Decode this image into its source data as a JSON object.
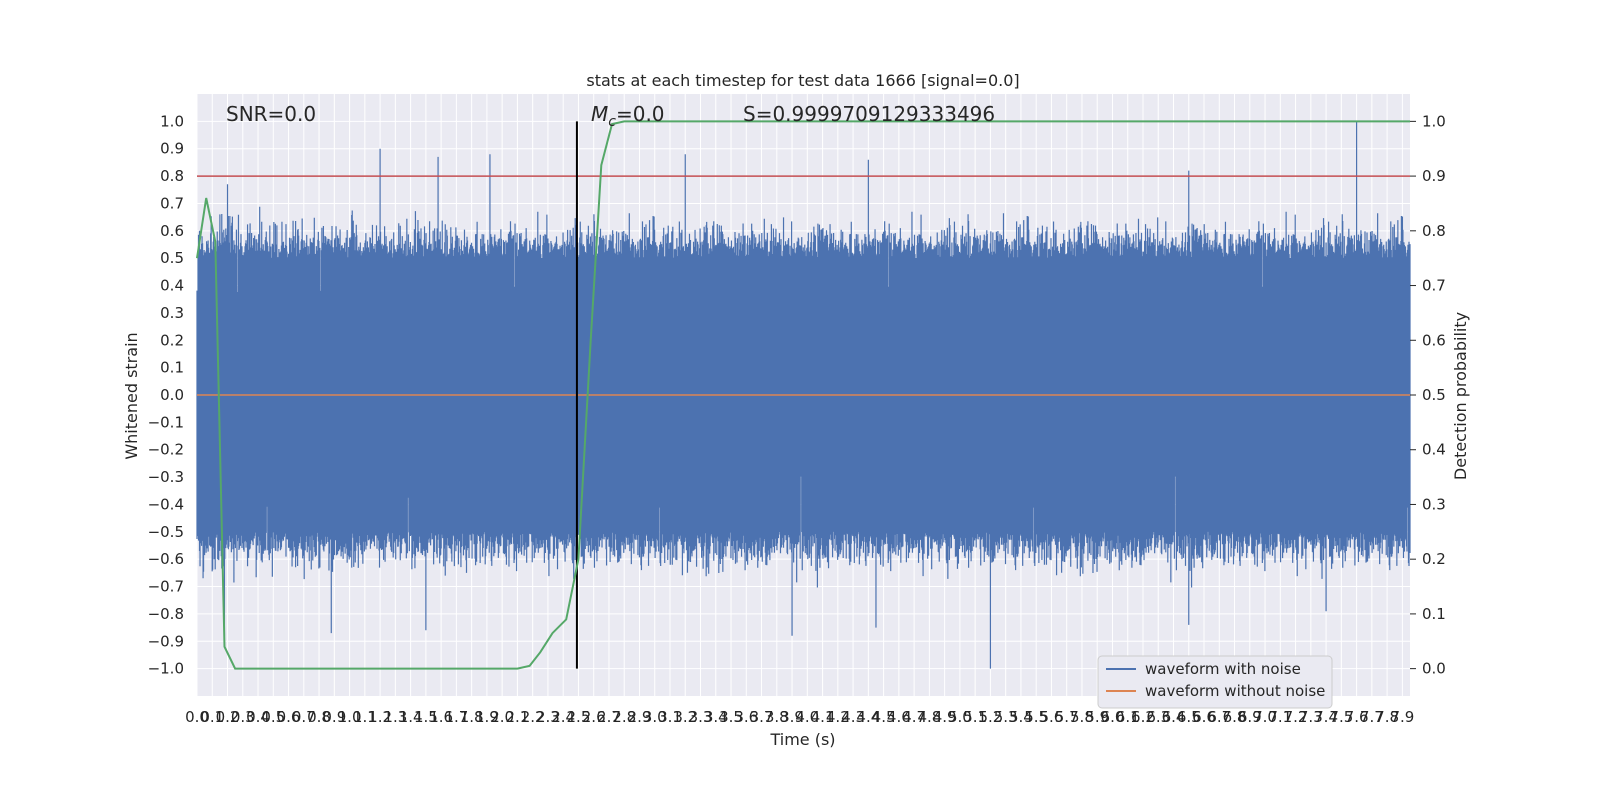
{
  "chart_data": {
    "type": "line",
    "title": "stats at each timestep for test data 1666 [signal=0.0]",
    "xlabel": "Time (s)",
    "ylabel": "Whitened strain",
    "ylabel_right": "Detection probability",
    "xlim": [
      0.0,
      7.95
    ],
    "ylim": [
      -1.1,
      1.1
    ],
    "ylim_right": [
      -0.05,
      1.05
    ],
    "xticks": [
      0.0,
      0.1,
      0.2,
      0.3,
      0.4,
      0.5,
      0.6,
      0.7,
      0.8,
      0.9,
      1.0,
      1.1,
      1.2,
      1.3,
      1.4,
      1.5,
      1.6,
      1.7,
      1.8,
      1.9,
      2.0,
      2.1,
      2.2,
      2.3,
      2.4,
      2.5,
      2.6,
      2.7,
      2.8,
      2.9,
      3.0,
      3.1,
      3.2,
      3.3,
      3.4,
      3.5,
      3.6,
      3.7,
      3.8,
      3.9,
      4.0,
      4.1,
      4.2,
      4.3,
      4.4,
      4.5,
      4.6,
      4.7,
      4.8,
      4.9,
      5.0,
      5.1,
      5.2,
      5.3,
      5.4,
      5.5,
      5.6,
      5.7,
      5.8,
      5.9,
      6.0,
      6.1,
      6.2,
      6.3,
      6.4,
      6.5,
      6.6,
      6.7,
      6.8,
      6.9,
      7.0,
      7.1,
      7.2,
      7.3,
      7.4,
      7.5,
      7.6,
      7.7,
      7.8,
      7.9
    ],
    "xtick_labels": [
      "0.0",
      "0.1",
      "0.2",
      "0.3",
      "0.4",
      "0.5",
      "0.6",
      "0.7",
      "0.8",
      "0.9",
      "1.0",
      "1.1",
      "1.2",
      "1.3",
      "1.4",
      "1.5",
      "1.6",
      "1.7",
      "1.8",
      "1.9",
      "2.0",
      "2.1",
      "2.2",
      "2.3",
      "2.4",
      "2.5",
      "2.6",
      "2.7",
      "2.8",
      "2.9",
      "3.0",
      "3.1",
      "3.2",
      "3.3",
      "3.4",
      "3.5",
      "3.6",
      "3.7",
      "3.8",
      "3.9",
      "4.0",
      "4.1",
      "4.2",
      "4.3",
      "4.4",
      "4.5",
      "4.6",
      "4.7",
      "4.8",
      "4.9",
      "5.0",
      "5.1",
      "5.2",
      "5.3",
      "5.4",
      "5.5",
      "5.6",
      "5.7",
      "5.8",
      "5.9",
      "6.0",
      "6.1",
      "6.2",
      "6.3",
      "6.4",
      "6.5",
      "6.6",
      "6.7",
      "6.8",
      "6.9",
      "7.0",
      "7.1",
      "7.2",
      "7.3",
      "7.4",
      "7.5",
      "7.6",
      "7.7",
      "7.8",
      "7.9"
    ],
    "yticks": [
      -1.0,
      -0.9,
      -0.8,
      -0.7,
      -0.6,
      -0.5,
      -0.4,
      -0.3,
      -0.2,
      -0.1,
      0.0,
      0.1,
      0.2,
      0.3,
      0.4,
      0.5,
      0.6,
      0.7,
      0.8,
      0.9,
      1.0
    ],
    "ytick_labels": [
      "−1.0",
      "−0.9",
      "−0.8",
      "−0.7",
      "−0.6",
      "−0.5",
      "−0.4",
      "−0.3",
      "−0.2",
      "−0.1",
      "0.0",
      "0.1",
      "0.2",
      "0.3",
      "0.4",
      "0.5",
      "0.6",
      "0.7",
      "0.8",
      "0.9",
      "1.0"
    ],
    "yticks_right": [
      0.0,
      0.1,
      0.2,
      0.3,
      0.4,
      0.5,
      0.6,
      0.7,
      0.8,
      0.9,
      1.0
    ],
    "ytick_labels_right": [
      "0.0",
      "0.1",
      "0.2",
      "0.3",
      "0.4",
      "0.5",
      "0.6",
      "0.7",
      "0.8",
      "0.9",
      "1.0"
    ],
    "grid": true,
    "legend_placement": "lower-right",
    "annotations": {
      "snr": "SNR=0.0",
      "mc_symbol": "M",
      "mc_subscript": "c",
      "mc_value": "=0.0",
      "s": "S=0.9999709129333496"
    },
    "series": [
      {
        "name": "waveform with noise",
        "color": "#4c72b0",
        "kind": "noise",
        "approx_envelope_upper": 0.5,
        "approx_envelope_lower": -0.5,
        "peak_points": [
          {
            "x": 0.05,
            "y": 0.52
          },
          {
            "x": 0.15,
            "y": 0.66
          },
          {
            "x": 0.2,
            "y": 0.77
          },
          {
            "x": 1.2,
            "y": 0.9
          },
          {
            "x": 1.58,
            "y": 0.87
          },
          {
            "x": 1.92,
            "y": 0.88
          },
          {
            "x": 3.2,
            "y": 0.88
          },
          {
            "x": 4.4,
            "y": 0.86
          },
          {
            "x": 6.5,
            "y": 0.82
          },
          {
            "x": 7.6,
            "y": 1.0
          },
          {
            "x": 0.18,
            "y": -0.88
          },
          {
            "x": 0.88,
            "y": -0.87
          },
          {
            "x": 1.5,
            "y": -0.86
          },
          {
            "x": 3.9,
            "y": -0.88
          },
          {
            "x": 4.45,
            "y": -0.85
          },
          {
            "x": 5.2,
            "y": -1.0
          },
          {
            "x": 6.5,
            "y": -0.84
          },
          {
            "x": 7.4,
            "y": -0.79
          }
        ]
      },
      {
        "name": "waveform without noise",
        "color": "#dd8452",
        "kind": "flat",
        "value": 0.0
      },
      {
        "name": "",
        "color": "#55a868",
        "kind": "probability",
        "axis": "right",
        "points": [
          {
            "x": 0.0,
            "y": 0.75
          },
          {
            "x": 0.06,
            "y": 0.86
          },
          {
            "x": 0.12,
            "y": 0.78
          },
          {
            "x": 0.18,
            "y": 0.04
          },
          {
            "x": 0.25,
            "y": 0.0
          },
          {
            "x": 2.1,
            "y": 0.0
          },
          {
            "x": 2.18,
            "y": 0.005
          },
          {
            "x": 2.25,
            "y": 0.03
          },
          {
            "x": 2.33,
            "y": 0.065
          },
          {
            "x": 2.42,
            "y": 0.09
          },
          {
            "x": 2.5,
            "y": 0.2
          },
          {
            "x": 2.58,
            "y": 0.6
          },
          {
            "x": 2.65,
            "y": 0.92
          },
          {
            "x": 2.72,
            "y": 0.995
          },
          {
            "x": 2.8,
            "y": 1.0
          },
          {
            "x": 7.95,
            "y": 1.0
          }
        ]
      },
      {
        "name": "",
        "color": "#c44e52",
        "kind": "threshold",
        "axis": "right",
        "value": 0.9
      }
    ],
    "vertical_marker": {
      "x": 2.49,
      "color": "#000000",
      "axis": "right",
      "y_range": [
        0.0,
        1.0
      ]
    }
  }
}
